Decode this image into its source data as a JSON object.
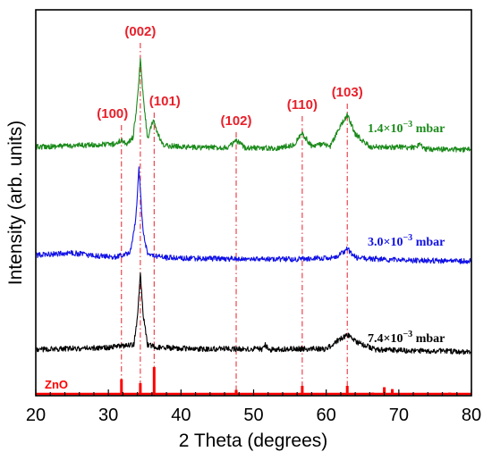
{
  "chart_data": {
    "type": "line",
    "xlabel": "2 Theta (degrees)",
    "ylabel": "Intensity (arb. units)",
    "xlim": [
      20,
      80
    ],
    "xticks": [
      20,
      30,
      40,
      50,
      60,
      70,
      80
    ],
    "yticks_shown": false,
    "grid": false,
    "peaks": [
      {
        "label": "(100)",
        "x": 31.8
      },
      {
        "label": "(002)",
        "x": 34.4
      },
      {
        "label": "(101)",
        "x": 36.3
      },
      {
        "label": "(102)",
        "x": 47.6
      },
      {
        "label": "(110)",
        "x": 56.7
      },
      {
        "label": "(103)",
        "x": 62.9
      }
    ],
    "series": [
      {
        "label_base": "1.4×10",
        "label_exp": "−3",
        "label_unit": " mbar",
        "color": "#1a8a1a",
        "x": [
          20,
          28,
          31,
          31.8,
          32.6,
          33.4,
          34.0,
          34.4,
          34.8,
          35.4,
          36.0,
          36.3,
          36.7,
          37.5,
          42,
          46.5,
          47.6,
          48.8,
          53,
          55.5,
          56.7,
          57.9,
          59.5,
          60.5,
          61.8,
          62.9,
          64,
          66,
          72.5,
          72.9,
          73.4,
          80
        ],
        "y": [
          1.0,
          1.4,
          1.6,
          2.4,
          1.6,
          3.0,
          10.5,
          19.0,
          11.0,
          2.8,
          5.5,
          6.3,
          4.0,
          1.3,
          0.9,
          0.9,
          2.2,
          0.9,
          0.7,
          1.4,
          3.8,
          1.3,
          1.5,
          1.0,
          4.8,
          7.5,
          3.6,
          1.0,
          0.9,
          2.0,
          0.6,
          0.4
        ]
      },
      {
        "label_base": "3.0×10",
        "label_exp": "−3",
        "label_unit": " mbar",
        "color": "#1010e6",
        "x": [
          20,
          25,
          28,
          31,
          33.0,
          33.8,
          34.2,
          34.5,
          34.8,
          35.4,
          36.0,
          38,
          45,
          55,
          61.5,
          62.9,
          64.2,
          70,
          80
        ],
        "y": [
          1.3,
          1.8,
          1.2,
          1.0,
          1.8,
          9.0,
          19.0,
          12.0,
          6.0,
          1.6,
          1.2,
          0.8,
          0.6,
          0.5,
          0.9,
          2.6,
          0.8,
          0.3,
          0.1
        ]
      },
      {
        "label_base": "7.4×10",
        "label_exp": "−3",
        "label_unit": " mbar",
        "color": "#000000",
        "x": [
          20,
          25,
          30,
          33.5,
          34.0,
          34.4,
          34.8,
          35.4,
          36.5,
          42,
          48,
          51.3,
          51.6,
          52.0,
          56,
          60,
          61.8,
          62.9,
          64.2,
          67,
          75,
          80
        ],
        "y": [
          0.5,
          0.7,
          0.9,
          1.5,
          7.0,
          15.8,
          7.5,
          1.5,
          1.0,
          0.6,
          0.6,
          0.6,
          1.5,
          0.5,
          0.6,
          0.6,
          2.5,
          3.5,
          2.0,
          0.4,
          0.2,
          0.0
        ]
      }
    ],
    "reference": {
      "label": "ZnO",
      "color": "#ff0000",
      "sticks": [
        {
          "x": 31.8,
          "h": 0.55
        },
        {
          "x": 34.4,
          "h": 0.4
        },
        {
          "x": 36.3,
          "h": 1.0
        },
        {
          "x": 47.6,
          "h": 0.15
        },
        {
          "x": 56.7,
          "h": 0.3
        },
        {
          "x": 62.9,
          "h": 0.3
        },
        {
          "x": 66.4,
          "h": 0.05
        },
        {
          "x": 68.0,
          "h": 0.25
        },
        {
          "x": 69.1,
          "h": 0.18
        },
        {
          "x": 72.6,
          "h": 0.03
        },
        {
          "x": 77.0,
          "h": 0.05
        }
      ]
    }
  }
}
